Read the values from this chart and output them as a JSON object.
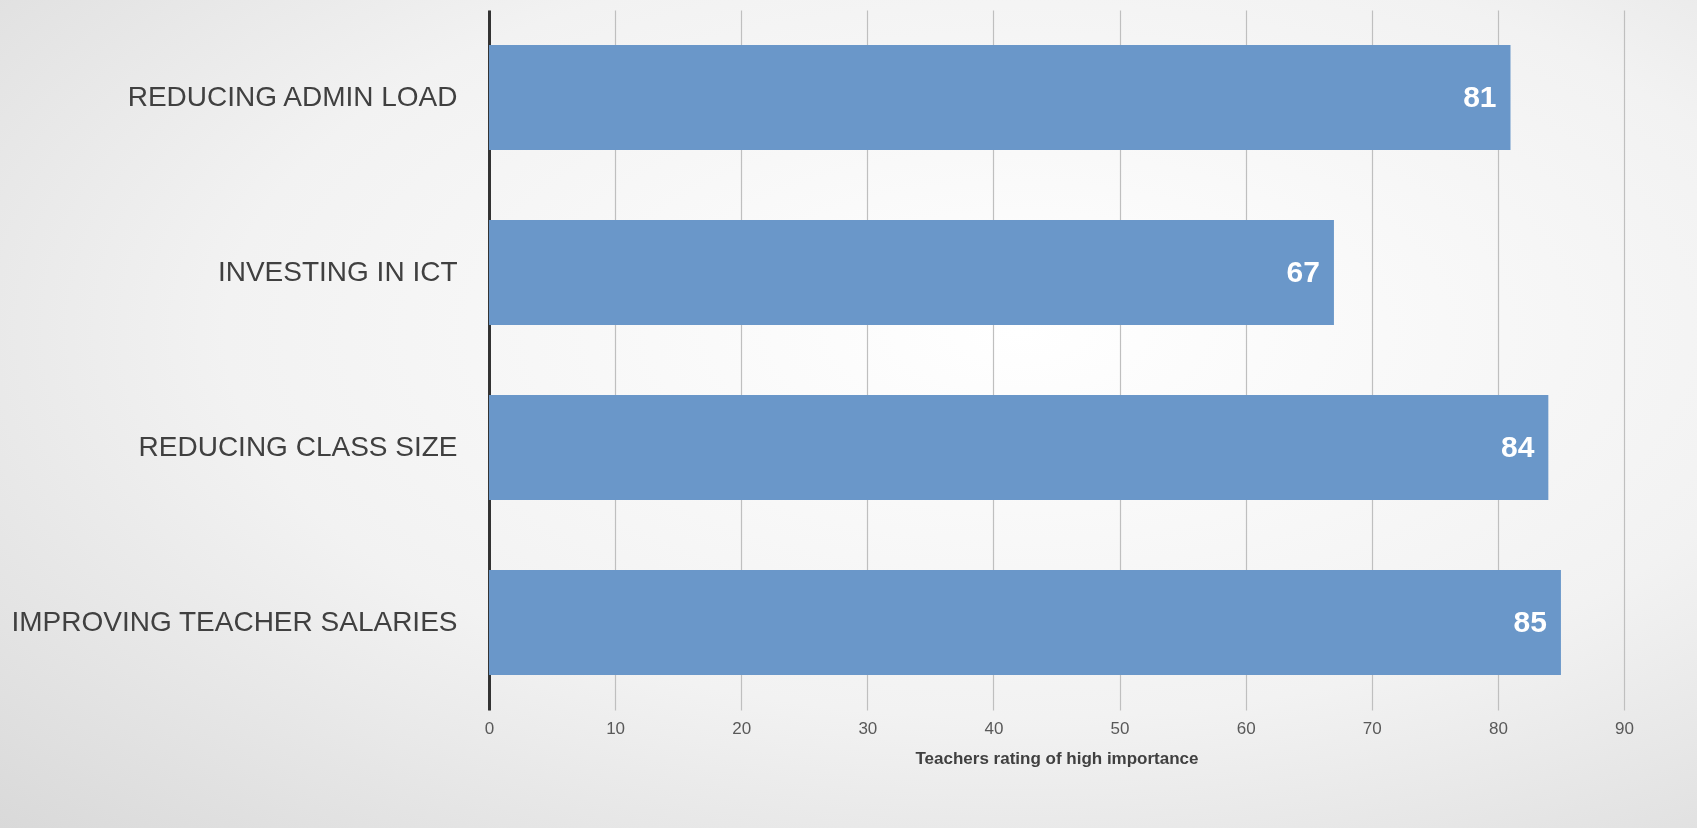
{
  "chart_data": {
    "type": "bar",
    "orientation": "horizontal",
    "categories": [
      "REDUCING ADMIN LOAD",
      "INVESTING IN ICT",
      "REDUCING CLASS SIZE",
      "IMPROVING TEACHER SALARIES"
    ],
    "values": [
      81,
      67,
      84,
      85
    ],
    "color": "#6a97c9",
    "xlim": [
      0,
      90
    ],
    "xticks": [
      0,
      10,
      20,
      30,
      40,
      50,
      60,
      70,
      80,
      90
    ],
    "xlabel": "Teachers rating of high importance",
    "grid": "x",
    "data_labels": true
  }
}
